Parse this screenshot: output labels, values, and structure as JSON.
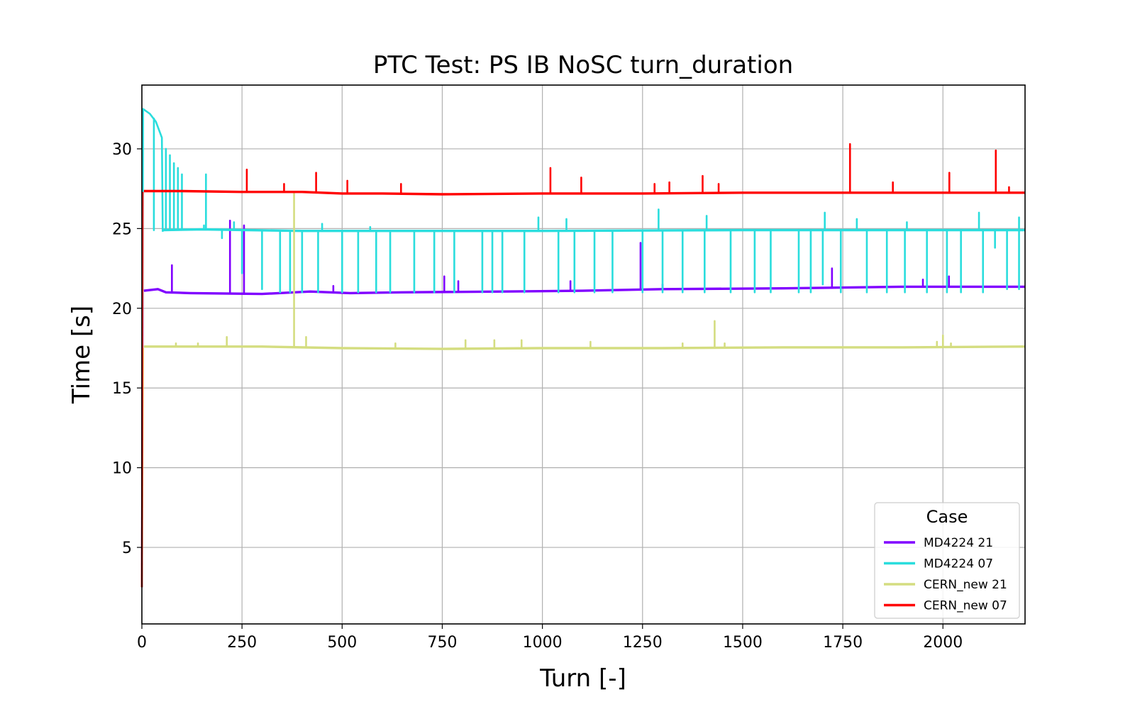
{
  "chart_data": {
    "type": "line",
    "title": "PTC Test: PS IB NoSC turn_duration",
    "xlabel": "Turn [-]",
    "ylabel": "Time [s]",
    "xlim": [
      0,
      2205
    ],
    "ylim": [
      0.2,
      34.0
    ],
    "xticks": [
      0,
      250,
      500,
      750,
      1000,
      1250,
      1500,
      1750,
      2000
    ],
    "yticks": [
      5,
      10,
      15,
      20,
      25,
      30
    ],
    "grid": true,
    "legend": {
      "title": "Case",
      "placement": "bottom-right"
    },
    "series": [
      {
        "name": "MD4224 21",
        "color": "#8000ff",
        "start": [
          [
            0,
            2.5
          ],
          [
            2,
            21.0
          ]
        ],
        "base": [
          [
            5,
            21.1
          ],
          [
            40,
            21.2
          ],
          [
            60,
            21.0
          ],
          [
            120,
            20.95
          ],
          [
            300,
            20.9
          ],
          [
            420,
            21.05
          ],
          [
            520,
            20.95
          ],
          [
            650,
            21.0
          ],
          [
            900,
            21.05
          ],
          [
            1100,
            21.1
          ],
          [
            1300,
            21.2
          ],
          [
            1600,
            21.25
          ],
          [
            1900,
            21.35
          ],
          [
            2205,
            21.35
          ]
        ],
        "spikes": [
          [
            75,
            22.7
          ],
          [
            220,
            25.5
          ],
          [
            255,
            25.2
          ],
          [
            478,
            21.4
          ],
          [
            755,
            22.0
          ],
          [
            790,
            21.7
          ],
          [
            1070,
            21.7
          ],
          [
            1245,
            24.1
          ],
          [
            1300,
            21.5
          ],
          [
            1723,
            22.5
          ],
          [
            1950,
            21.8
          ],
          [
            2015,
            22.0
          ]
        ]
      },
      {
        "name": "MD4224 07",
        "color": "#2adddd",
        "start": [
          [
            0,
            2.5
          ],
          [
            3,
            32.5
          ],
          [
            20,
            32.2
          ],
          [
            35,
            31.7
          ],
          [
            50,
            30.7
          ],
          [
            52,
            24.8
          ]
        ],
        "base": [
          [
            52,
            24.9
          ],
          [
            150,
            24.95
          ],
          [
            400,
            24.85
          ],
          [
            1000,
            24.85
          ],
          [
            1500,
            24.9
          ],
          [
            2205,
            24.9
          ]
        ],
        "spikes": [
          [
            30,
            31.9
          ],
          [
            60,
            30.0
          ],
          [
            70,
            29.6
          ],
          [
            80,
            29.1
          ],
          [
            90,
            28.8
          ],
          [
            100,
            28.4
          ],
          [
            160,
            28.4
          ],
          [
            230,
            25.4
          ],
          [
            450,
            25.3
          ],
          [
            570,
            25.1
          ],
          [
            990,
            25.7
          ],
          [
            1060,
            25.6
          ],
          [
            1290,
            26.2
          ],
          [
            1410,
            25.8
          ],
          [
            1705,
            26.0
          ],
          [
            1785,
            25.6
          ],
          [
            1910,
            25.4
          ],
          [
            2090,
            26.0
          ],
          [
            2190,
            25.7
          ]
        ],
        "dips": [
          [
            60,
            24.9
          ],
          [
            70,
            24.9
          ],
          [
            80,
            25.0
          ],
          [
            90,
            25.0
          ],
          [
            100,
            25.0
          ],
          [
            155,
            25.2
          ],
          [
            200,
            24.4
          ],
          [
            250,
            22.2
          ],
          [
            300,
            21.2
          ],
          [
            345,
            21.0
          ],
          [
            370,
            21.0
          ],
          [
            400,
            21.0
          ],
          [
            440,
            21.0
          ],
          [
            500,
            21.0
          ],
          [
            540,
            21.0
          ],
          [
            585,
            21.0
          ],
          [
            620,
            21.0
          ],
          [
            680,
            21.0
          ],
          [
            730,
            21.0
          ],
          [
            780,
            21.0
          ],
          [
            850,
            21.0
          ],
          [
            875,
            21.0
          ],
          [
            900,
            21.0
          ],
          [
            955,
            21.0
          ],
          [
            1040,
            21.0
          ],
          [
            1080,
            21.0
          ],
          [
            1130,
            21.0
          ],
          [
            1175,
            21.0
          ],
          [
            1250,
            21.0
          ],
          [
            1300,
            21.0
          ],
          [
            1350,
            21.0
          ],
          [
            1405,
            21.0
          ],
          [
            1470,
            21.0
          ],
          [
            1530,
            21.0
          ],
          [
            1570,
            21.0
          ],
          [
            1640,
            21.0
          ],
          [
            1670,
            21.0
          ],
          [
            1700,
            21.5
          ],
          [
            1745,
            21.0
          ],
          [
            1810,
            21.0
          ],
          [
            1860,
            21.0
          ],
          [
            1905,
            21.0
          ],
          [
            1960,
            21.0
          ],
          [
            2010,
            21.0
          ],
          [
            2045,
            21.0
          ],
          [
            2100,
            21.0
          ],
          [
            2130,
            23.8
          ],
          [
            2160,
            21.2
          ],
          [
            2190,
            21.2
          ]
        ]
      },
      {
        "name": "CERN_new 21",
        "color": "#d4dd80",
        "start": [
          [
            0,
            2.5
          ],
          [
            3,
            17.5
          ]
        ],
        "base": [
          [
            5,
            17.6
          ],
          [
            100,
            17.6
          ],
          [
            300,
            17.6
          ],
          [
            500,
            17.5
          ],
          [
            750,
            17.45
          ],
          [
            1000,
            17.5
          ],
          [
            1300,
            17.5
          ],
          [
            1600,
            17.55
          ],
          [
            1900,
            17.55
          ],
          [
            2205,
            17.6
          ]
        ],
        "spikes": [
          [
            85,
            17.8
          ],
          [
            140,
            17.8
          ],
          [
            212,
            18.2
          ],
          [
            380,
            27.2
          ],
          [
            410,
            18.2
          ],
          [
            633,
            17.8
          ],
          [
            808,
            18.0
          ],
          [
            880,
            18.0
          ],
          [
            948,
            18.0
          ],
          [
            1120,
            17.9
          ],
          [
            1350,
            17.8
          ],
          [
            1430,
            19.2
          ],
          [
            1455,
            17.8
          ],
          [
            1985,
            17.9
          ],
          [
            2000,
            18.3
          ],
          [
            2020,
            17.8
          ]
        ]
      },
      {
        "name": "CERN_new 07",
        "color": "#ff0000",
        "start": [
          [
            0,
            2.5
          ],
          [
            2,
            27.3
          ]
        ],
        "base": [
          [
            5,
            27.35
          ],
          [
            100,
            27.35
          ],
          [
            250,
            27.3
          ],
          [
            400,
            27.3
          ],
          [
            500,
            27.2
          ],
          [
            600,
            27.2
          ],
          [
            750,
            27.15
          ],
          [
            1000,
            27.2
          ],
          [
            1250,
            27.2
          ],
          [
            1500,
            27.25
          ],
          [
            1750,
            27.25
          ],
          [
            2000,
            27.25
          ],
          [
            2205,
            27.25
          ]
        ],
        "spikes": [
          [
            262,
            28.7
          ],
          [
            355,
            27.8
          ],
          [
            435,
            28.5
          ],
          [
            513,
            28.0
          ],
          [
            647,
            27.8
          ],
          [
            1020,
            28.8
          ],
          [
            1097,
            28.2
          ],
          [
            1280,
            27.8
          ],
          [
            1317,
            27.9
          ],
          [
            1400,
            28.3
          ],
          [
            1440,
            27.8
          ],
          [
            1768,
            30.3
          ],
          [
            1875,
            27.9
          ],
          [
            2016,
            28.5
          ],
          [
            2132,
            29.9
          ],
          [
            2165,
            27.6
          ]
        ]
      }
    ]
  }
}
